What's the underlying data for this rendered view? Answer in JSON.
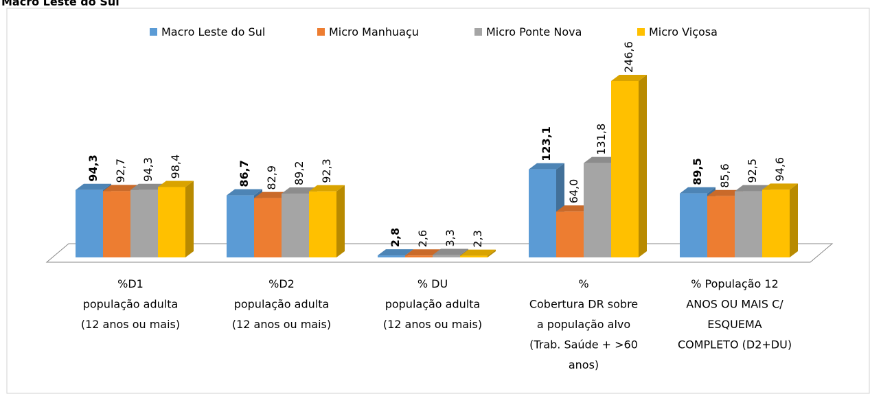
{
  "chart_data": {
    "type": "bar3d",
    "title": "Macro Leste do Sul",
    "categories": [
      [
        "%D1",
        "população adulta",
        "(12 anos ou mais)"
      ],
      [
        "%D2",
        "população adulta",
        "(12 anos ou mais)"
      ],
      [
        "% DU",
        "população adulta",
        "(12 anos ou mais)"
      ],
      [
        "%",
        "Cobertura DR sobre",
        "a população alvo",
        "(Trab. Saúde + >60",
        "anos)"
      ],
      [
        "% População 12",
        "ANOS OU MAIS C/",
        "ESQUEMA",
        "COMPLETO (D2+DU)"
      ]
    ],
    "series": [
      {
        "name": "Macro Leste do Sul",
        "color": "#5b9bd5",
        "values": [
          94.3,
          86.7,
          2.8,
          123.1,
          89.5
        ],
        "value_labels": [
          "94,3",
          "86,7",
          "2,8",
          "123,1",
          "89,5"
        ]
      },
      {
        "name": "Micro Manhuaçu",
        "color": "#ed7d31",
        "values": [
          92.7,
          82.9,
          2.6,
          64.0,
          85.6
        ],
        "value_labels": [
          "92,7",
          "82,9",
          "2,6",
          "64,0",
          "85,6"
        ]
      },
      {
        "name": "Micro Ponte Nova",
        "color": "#a5a5a5",
        "values": [
          94.3,
          89.2,
          3.3,
          131.8,
          92.5
        ],
        "value_labels": [
          "94,3",
          "89,2",
          "3,3",
          "131,8",
          "92,5"
        ]
      },
      {
        "name": "Micro Viçosa",
        "color": "#ffc000",
        "values": [
          98.4,
          92.3,
          2.3,
          246.6,
          94.6
        ],
        "value_labels": [
          "98,4",
          "92,3",
          "2,3",
          "246,6",
          "94,6"
        ]
      }
    ],
    "legend": "top"
  }
}
